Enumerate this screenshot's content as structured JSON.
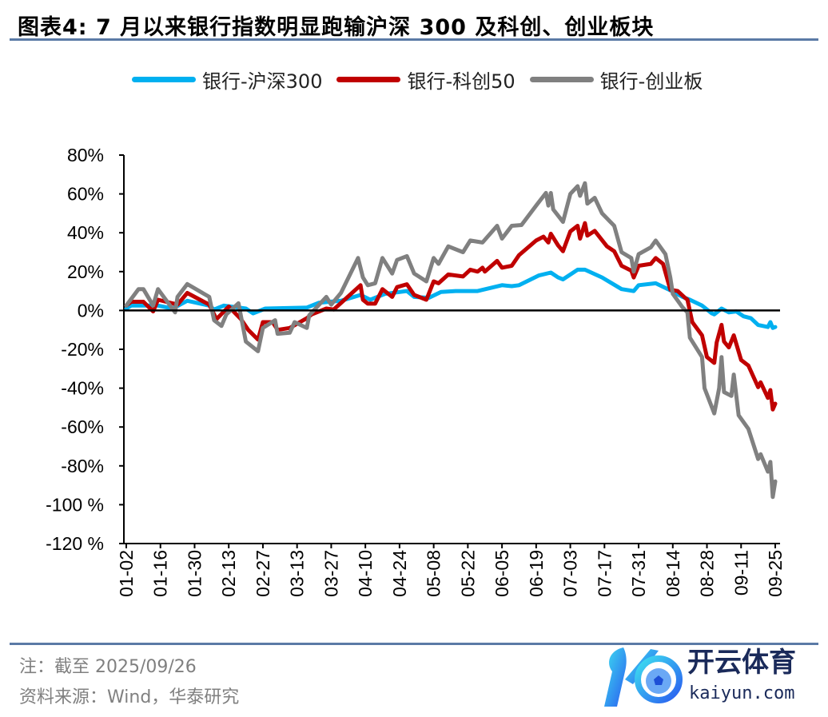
{
  "header": {
    "title": "图表4:  7 月以来银行指数明显跑输沪深 300 及科创、创业板块"
  },
  "footer": {
    "note": "注：截至 2025/09/26",
    "source": "资料来源：Wind，华泰研究"
  },
  "watermark": {
    "cn": "开云体育",
    "en": "kaiyun.com"
  },
  "chart_data": {
    "type": "line",
    "title": "",
    "xlabel": "",
    "ylabel": "",
    "ylim": [
      -1.2,
      0.8
    ],
    "yticks": [
      0.8,
      0.6,
      0.4,
      0.2,
      0,
      -0.2,
      -0.4,
      -0.6,
      -0.8,
      -1.0,
      -1.2
    ],
    "ytick_labels": [
      "80%",
      "60%",
      "40%",
      "20%",
      "0%",
      "-20%",
      "-40%",
      "-60%",
      "-80%",
      "-100 %",
      "-120 %"
    ],
    "xtick_labels": [
      "01-02",
      "01-16",
      "01-30",
      "02-13",
      "02-27",
      "03-13",
      "03-27",
      "04-10",
      "04-24",
      "05-08",
      "05-22",
      "06-05",
      "06-19",
      "07-03",
      "07-17",
      "07-31",
      "08-14",
      "08-28",
      "09-11",
      "09-25"
    ],
    "xlim": [
      "01-02",
      "09-25"
    ],
    "legend_position": "top",
    "grid": false,
    "series": [
      {
        "name": "银行-沪深300",
        "color": "#00b0f0",
        "points": [
          [
            "01-02",
            1
          ],
          [
            "01-04",
            2.5
          ],
          [
            "01-09",
            2.5
          ],
          [
            "01-15",
            2.5
          ],
          [
            "01-21",
            1
          ],
          [
            "01-27",
            5
          ],
          [
            "02-05",
            2.5
          ],
          [
            "02-07",
            0.5
          ],
          [
            "02-11",
            2.5
          ],
          [
            "02-20",
            1
          ],
          [
            "02-23",
            -1.5
          ],
          [
            "02-28",
            1
          ],
          [
            "03-17",
            1.5
          ],
          [
            "03-22",
            4
          ],
          [
            "03-31",
            5
          ],
          [
            "04-08",
            8
          ],
          [
            "04-12",
            5.5
          ],
          [
            "04-18",
            8.5
          ],
          [
            "04-27",
            10
          ],
          [
            "04-30",
            7
          ],
          [
            "05-06",
            6.5
          ],
          [
            "05-11",
            9.5
          ],
          [
            "05-17",
            10
          ],
          [
            "05-26",
            10
          ],
          [
            "06-05",
            13
          ],
          [
            "06-09",
            12.5
          ],
          [
            "06-12",
            13
          ],
          [
            "06-20",
            18
          ],
          [
            "06-25",
            19.5
          ],
          [
            "06-28",
            17
          ],
          [
            "06-30",
            16
          ],
          [
            "07-06",
            21
          ],
          [
            "07-09",
            21
          ],
          [
            "07-16",
            17
          ],
          [
            "07-24",
            11
          ],
          [
            "07-29",
            10
          ],
          [
            "07-31",
            13
          ],
          [
            "08-07",
            14
          ],
          [
            "08-12",
            11
          ],
          [
            "08-18",
            7
          ],
          [
            "08-21",
            5.5
          ],
          [
            "08-26",
            2.5
          ],
          [
            "08-30",
            -1.5
          ],
          [
            "08-31",
            -2
          ],
          [
            "09-03",
            1
          ],
          [
            "09-06",
            -1
          ],
          [
            "09-09",
            -0.5
          ],
          [
            "09-12",
            -3
          ],
          [
            "09-15",
            -4
          ],
          [
            "09-18",
            -7.5
          ],
          [
            "09-22",
            -8.5
          ],
          [
            "09-23",
            -6
          ],
          [
            "09-24",
            -9
          ],
          [
            "09-25",
            -8.5
          ]
        ]
      },
      {
        "name": "银行-科创50",
        "color": "#c00000",
        "points": [
          [
            "01-02",
            2.5
          ],
          [
            "01-04",
            4.5
          ],
          [
            "01-09",
            4.5
          ],
          [
            "01-13",
            -0.5
          ],
          [
            "01-15",
            5.5
          ],
          [
            "01-23",
            3
          ],
          [
            "01-27",
            9
          ],
          [
            "02-05",
            3
          ],
          [
            "02-08",
            -4.5
          ],
          [
            "02-13",
            2
          ],
          [
            "02-18",
            -4.5
          ],
          [
            "02-21",
            -10
          ],
          [
            "02-25",
            -15
          ],
          [
            "02-27",
            -6
          ],
          [
            "03-03",
            -6
          ],
          [
            "03-05",
            -10
          ],
          [
            "03-10",
            -9
          ],
          [
            "03-17",
            -4
          ],
          [
            "03-19",
            -2
          ],
          [
            "03-25",
            1
          ],
          [
            "03-28",
            0.5
          ],
          [
            "04-01",
            5
          ],
          [
            "04-08",
            13
          ],
          [
            "04-09",
            5.5
          ],
          [
            "04-11",
            3.5
          ],
          [
            "04-14",
            3.5
          ],
          [
            "04-17",
            11
          ],
          [
            "04-21",
            7
          ],
          [
            "04-23",
            12
          ],
          [
            "04-27",
            13.5
          ],
          [
            "04-30",
            8
          ],
          [
            "05-05",
            5.5
          ],
          [
            "05-08",
            15
          ],
          [
            "05-10",
            14
          ],
          [
            "05-14",
            18.5
          ],
          [
            "05-20",
            17.5
          ],
          [
            "05-23",
            21
          ],
          [
            "05-26",
            20
          ],
          [
            "05-28",
            22
          ],
          [
            "05-29",
            20
          ],
          [
            "06-03",
            25.5
          ],
          [
            "06-05",
            22
          ],
          [
            "06-09",
            23
          ],
          [
            "06-12",
            28.5
          ],
          [
            "06-19",
            36
          ],
          [
            "06-22",
            38
          ],
          [
            "06-24",
            35
          ],
          [
            "06-25",
            39.5
          ],
          [
            "06-28",
            33.5
          ],
          [
            "06-30",
            30.5
          ],
          [
            "07-03",
            40.7
          ],
          [
            "07-06",
            43.6
          ],
          [
            "07-07",
            37
          ],
          [
            "07-09",
            45
          ],
          [
            "07-10",
            38.5
          ],
          [
            "07-13",
            41
          ],
          [
            "07-18",
            33
          ],
          [
            "07-21",
            30.5
          ],
          [
            "07-24",
            23
          ],
          [
            "07-28",
            20.5
          ],
          [
            "07-29",
            17
          ],
          [
            "07-31",
            23
          ],
          [
            "08-05",
            24
          ],
          [
            "08-07",
            27
          ],
          [
            "08-10",
            24
          ],
          [
            "08-13",
            10.7
          ],
          [
            "08-16",
            10
          ],
          [
            "08-19",
            6.5
          ],
          [
            "08-20",
            5.6
          ],
          [
            "08-22",
            -6
          ],
          [
            "08-26",
            -12.8
          ],
          [
            "08-28",
            -24
          ],
          [
            "08-31",
            -27
          ],
          [
            "09-01",
            -16.5
          ],
          [
            "09-03",
            -7.4
          ],
          [
            "09-04",
            -16
          ],
          [
            "09-06",
            -19
          ],
          [
            "09-08",
            -12.8
          ],
          [
            "09-11",
            -25.5
          ],
          [
            "09-14",
            -28.4
          ],
          [
            "09-18",
            -39.5
          ],
          [
            "09-19",
            -37
          ],
          [
            "09-22",
            -45
          ],
          [
            "09-23",
            -41
          ],
          [
            "09-24",
            -51
          ],
          [
            "09-25",
            -48
          ]
        ]
      },
      {
        "name": "银行-创业板",
        "color": "#808080",
        "points": [
          [
            "01-02",
            2.5
          ],
          [
            "01-07",
            11
          ],
          [
            "01-09",
            11
          ],
          [
            "01-13",
            2.5
          ],
          [
            "01-15",
            11
          ],
          [
            "01-22",
            -1
          ],
          [
            "01-23",
            7
          ],
          [
            "01-27",
            13.6
          ],
          [
            "02-05",
            7
          ],
          [
            "02-07",
            -5
          ],
          [
            "02-10",
            -8
          ],
          [
            "02-12",
            -2
          ],
          [
            "02-17",
            3.7
          ],
          [
            "02-20",
            -16
          ],
          [
            "02-25",
            -21
          ],
          [
            "02-27",
            -9
          ],
          [
            "03-04",
            -5
          ],
          [
            "03-05",
            -12
          ],
          [
            "03-10",
            -11.5
          ],
          [
            "03-12",
            -6
          ],
          [
            "03-17",
            -9
          ],
          [
            "03-18",
            -2.5
          ],
          [
            "03-25",
            7
          ],
          [
            "03-27",
            3
          ],
          [
            "03-31",
            9
          ],
          [
            "04-07",
            27
          ],
          [
            "04-09",
            17
          ],
          [
            "04-11",
            13
          ],
          [
            "04-14",
            14
          ],
          [
            "04-17",
            27
          ],
          [
            "04-21",
            19
          ],
          [
            "04-23",
            26
          ],
          [
            "04-27",
            28
          ],
          [
            "04-30",
            19
          ],
          [
            "05-05",
            15
          ],
          [
            "05-08",
            27
          ],
          [
            "05-10",
            24
          ],
          [
            "05-14",
            33
          ],
          [
            "05-20",
            30
          ],
          [
            "05-23",
            36
          ],
          [
            "05-28",
            35
          ],
          [
            "06-03",
            43.6
          ],
          [
            "06-05",
            37
          ],
          [
            "06-09",
            43.6
          ],
          [
            "06-13",
            44
          ],
          [
            "06-19",
            54
          ],
          [
            "06-23",
            60.5
          ],
          [
            "06-24",
            54
          ],
          [
            "06-25",
            60.5
          ],
          [
            "06-26",
            52
          ],
          [
            "06-30",
            45.6
          ],
          [
            "07-03",
            60
          ],
          [
            "07-06",
            64
          ],
          [
            "07-07",
            59
          ],
          [
            "07-09",
            65.5
          ],
          [
            "07-10",
            55
          ],
          [
            "07-13",
            58
          ],
          [
            "07-16",
            50
          ],
          [
            "07-21",
            43.6
          ],
          [
            "07-24",
            30
          ],
          [
            "07-28",
            27
          ],
          [
            "07-29",
            20
          ],
          [
            "07-31",
            29
          ],
          [
            "08-05",
            32.5
          ],
          [
            "08-07",
            36
          ],
          [
            "08-11",
            29
          ],
          [
            "08-13",
            17
          ],
          [
            "08-14",
            8.6
          ],
          [
            "08-18",
            1.6
          ],
          [
            "08-20",
            -1
          ],
          [
            "08-21",
            -14
          ],
          [
            "08-26",
            -24
          ],
          [
            "08-27",
            -40
          ],
          [
            "08-31",
            -53
          ],
          [
            "09-02",
            -40
          ],
          [
            "09-03",
            -24
          ],
          [
            "09-04",
            -42
          ],
          [
            "09-07",
            -44
          ],
          [
            "09-08",
            -33
          ],
          [
            "09-10",
            -54
          ],
          [
            "09-14",
            -61
          ],
          [
            "09-18",
            -76.5
          ],
          [
            "09-19",
            -74
          ],
          [
            "09-22",
            -83
          ],
          [
            "09-23",
            -78
          ],
          [
            "09-24",
            -96
          ],
          [
            "09-25",
            -88
          ]
        ]
      }
    ]
  }
}
